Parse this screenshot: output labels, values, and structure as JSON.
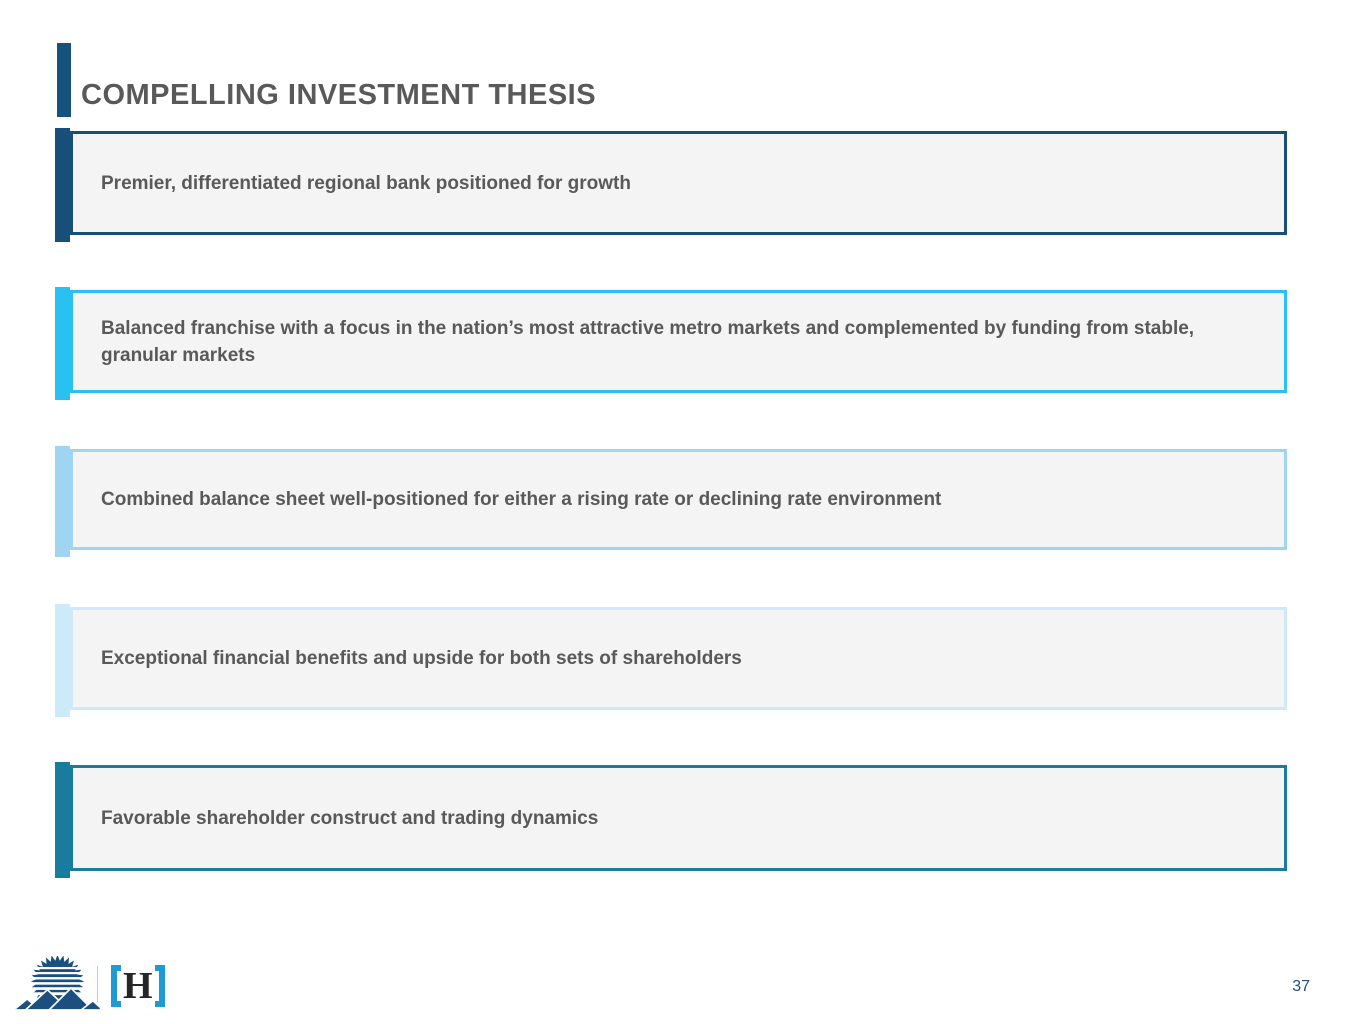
{
  "slide": {
    "title": "COMPELLING INVESTMENT THESIS",
    "page_number": "37",
    "theses": [
      {
        "text": "Premier, differentiated regional bank positioned for growth",
        "accent": "#174F79"
      },
      {
        "text": "Balanced franchise with a focus in the nation’s most attractive metro markets and complemented by funding from stable, granular markets",
        "accent": "#29C1F2"
      },
      {
        "text": "Combined balance sheet well-positioned for either a rising rate or declining rate environment",
        "accent": "#A0D5F1"
      },
      {
        "text": "Exceptional financial benefits and upside for both sets of shareholders",
        "accent": "#CCEAF8"
      },
      {
        "text": "Favorable shareholder construct and trading dynamics",
        "accent": "#187C9F"
      }
    ],
    "footer": {
      "logo_icons": [
        "sunburst-mountains-logo",
        "bracket-h-logo"
      ],
      "h_letter": "H"
    },
    "colors": {
      "title_accent": "#16527E",
      "title_text": "#595959",
      "box_background": "#F4F4F4",
      "box_text": "#595959",
      "bracket_blue": "#1E9BD7",
      "logo_navy": "#1B4F7E",
      "page_number_blue": "#1F4E79"
    }
  }
}
